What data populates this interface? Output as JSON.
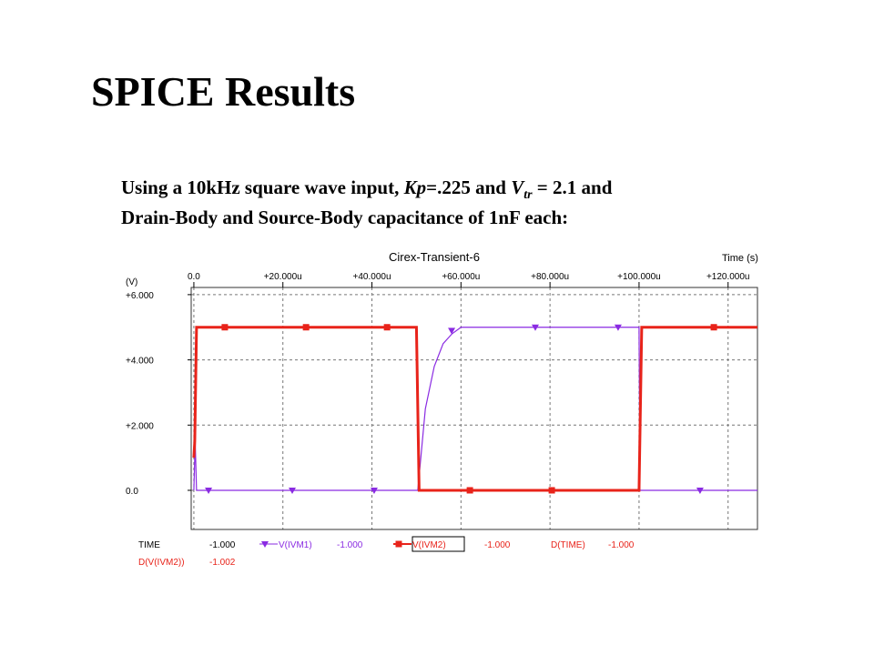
{
  "slide_title": "SPICE Results",
  "description": {
    "line1": [
      "Using a 10kHz square wave input, ",
      "Kp",
      "=.225 and ",
      "V",
      "tr",
      " = 2.1 and"
    ],
    "line2": "Drain-Body and Source-Body capacitance of 1nF each:"
  },
  "chart_data": {
    "type": "line",
    "title": "Cirex-Transient-6",
    "x_label": "Time  (s)",
    "y_label": "(V)",
    "xlim": [
      -6e-07,
      0.0001266
    ],
    "ylim": [
      -1.2,
      6.22
    ],
    "xticks": [
      {
        "value": 0,
        "label": "0.0"
      },
      {
        "value": 2e-05,
        "label": "+20.000u"
      },
      {
        "value": 4e-05,
        "label": "+40.000u"
      },
      {
        "value": 6e-05,
        "label": "+60.000u"
      },
      {
        "value": 8e-05,
        "label": "+80.000u"
      },
      {
        "value": 0.0001,
        "label": "+100.000u"
      },
      {
        "value": 0.00012,
        "label": "+120.000u"
      }
    ],
    "yticks": [
      {
        "value": 0,
        "label": "0.0"
      },
      {
        "value": 2,
        "label": "+2.000"
      },
      {
        "value": 4,
        "label": "+4.000"
      },
      {
        "value": 6,
        "label": "+6.000"
      }
    ],
    "grid": true,
    "cursor_x": {
      "label": "TIME",
      "readout": "-1.000"
    },
    "series": [
      {
        "name": "V(IVM1)",
        "color": "#8a2be2",
        "marker": "triangle",
        "readout": "-1.000",
        "x": [
          0,
          3e-07,
          6e-07,
          5e-05,
          5.03e-05,
          5.2e-05,
          5.4e-05,
          5.6e-05,
          5.8e-05,
          6e-05,
          0.0001,
          0.0001002,
          0.0001006,
          0.0001266
        ],
        "values": [
          0,
          1.5,
          0,
          0,
          0,
          2.5,
          3.8,
          4.5,
          4.8,
          5,
          5,
          0,
          0,
          0
        ],
        "markers": {
          "x": [
            3.3e-06,
            2.21e-05,
            4.05e-05,
            5.79e-05,
            7.67e-05,
            9.53e-05,
            0.0001137
          ],
          "values": [
            0,
            0,
            0,
            4.9,
            5,
            5,
            0
          ]
        }
      },
      {
        "name": "V(IVM2)",
        "color": "#e8231a",
        "marker": "square",
        "readout": "-1.000",
        "x": [
          0,
          2e-07,
          6e-07,
          5e-05,
          5.06e-05,
          0.0001,
          0.0001006,
          0.0001266
        ],
        "values": [
          1,
          1.5,
          5,
          5,
          0,
          0,
          5,
          5
        ],
        "markers": {
          "x": [
            6.95e-06,
            2.52e-05,
            4.34e-05,
            6.2e-05,
            8.04e-05,
            0.0001168
          ],
          "values": [
            5,
            5,
            5,
            0,
            0,
            5
          ]
        }
      }
    ],
    "extra_readouts": [
      {
        "label": "D(TIME)",
        "readout": "-1.000"
      },
      {
        "label": "D(V(IVM2))",
        "readout": "-1.002"
      }
    ]
  }
}
